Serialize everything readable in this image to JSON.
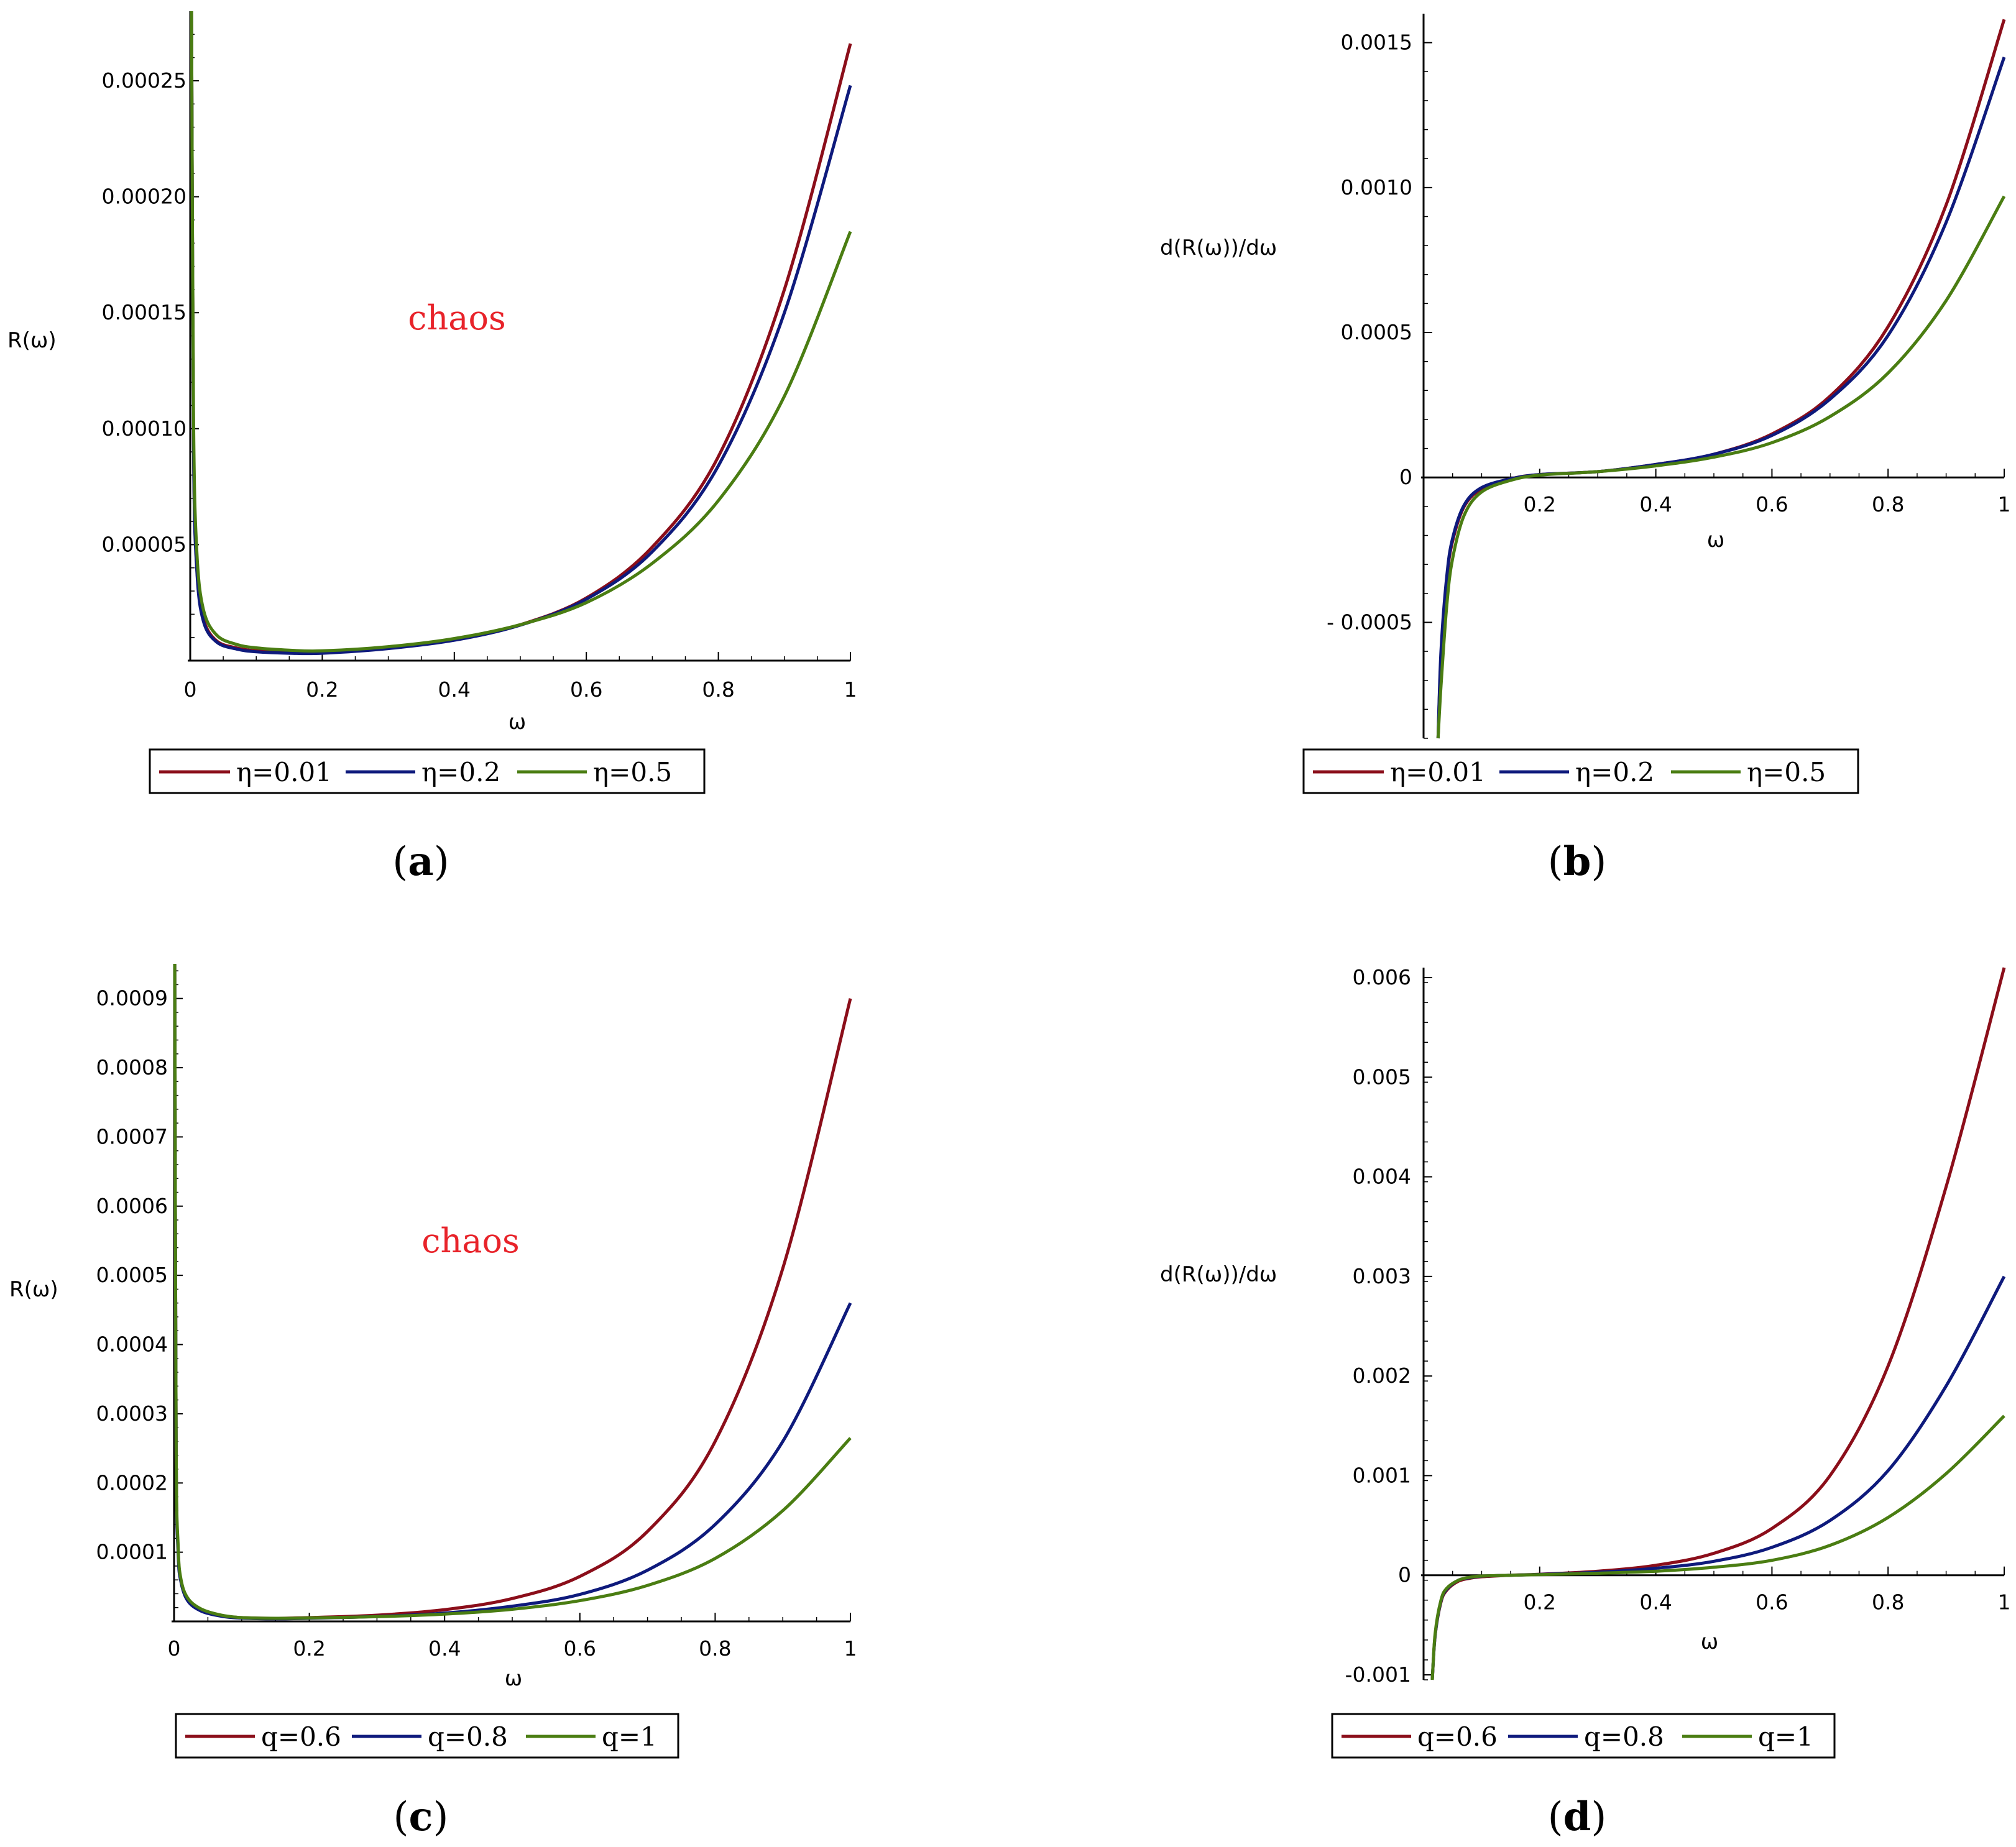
{
  "colors": {
    "red": "#8b0e1a",
    "blue": "#0e1a7c",
    "green": "#4a7d12",
    "annotation": "#e8232a"
  },
  "chart_data": [
    {
      "id": "a",
      "type": "line",
      "caption": "a",
      "xlabel": "ω",
      "ylabel": "R(ω)",
      "xlim": [
        0,
        1
      ],
      "ylim": [
        0,
        0.00028
      ],
      "xticks": [
        "0",
        "0.2",
        "0.4",
        "0.6",
        "0.8",
        "1"
      ],
      "yticks": [
        "0.00005",
        "0.00010",
        "0.00015",
        "0.00020",
        "0.00025"
      ],
      "ytick_values": [
        5e-05,
        0.0001,
        0.00015,
        0.0002,
        0.00025
      ],
      "annotation": "chaos",
      "annotation_at": [
        0.41,
        0.000146
      ],
      "x": [
        0.002,
        0.005,
        0.01,
        0.02,
        0.04,
        0.07,
        0.1,
        0.15,
        0.2,
        0.3,
        0.4,
        0.5,
        0.6,
        0.7,
        0.8,
        0.9,
        1.0
      ],
      "series": [
        {
          "name": "η=0.01",
          "color": "red",
          "values": [
            0.00028,
            9.5e-05,
            4e-05,
            1.8e-05,
            8.5e-06,
            5.5e-06,
            4.2e-06,
            3.5e-06,
            3.5e-06,
            5.5e-06,
            9e-06,
            1.55e-05,
            2.7e-05,
            4.9e-05,
            8.8e-05,
            0.00016,
            0.000266
          ]
        },
        {
          "name": "η=0.2",
          "color": "blue",
          "values": [
            0.00028,
            9.3e-05,
            3.9e-05,
            1.7e-05,
            8e-06,
            5e-06,
            3.8e-06,
            3.2e-06,
            3.2e-06,
            5.2e-06,
            8.8e-06,
            1.53e-05,
            2.65e-05,
            4.7e-05,
            8.4e-05,
            0.00015,
            0.000248
          ]
        },
        {
          "name": "η=0.5",
          "color": "green",
          "values": [
            0.00028,
            0.000105,
            4.7e-05,
            2.2e-05,
            1.1e-05,
            7e-06,
            5.5e-06,
            4.5e-06,
            4.2e-06,
            6e-06,
            9.5e-06,
            1.55e-05,
            2.5e-05,
            4.2e-05,
            6.9e-05,
            0.000114,
            0.000185
          ]
        }
      ]
    },
    {
      "id": "b",
      "type": "line",
      "caption": "b",
      "xlabel": "ω",
      "ylabel": "d(R(ω))/dω",
      "xlim": [
        0,
        1
      ],
      "ylim": [
        -0.0009,
        0.0016
      ],
      "xticks": [
        "0.2",
        "0.4",
        "0.6",
        "0.8",
        "1"
      ],
      "yticks": [
        "- 0.0005",
        "0",
        "0.0005",
        "0.0010",
        "0.0015"
      ],
      "ytick_values": [
        -0.0005,
        0,
        0.0005,
        0.001,
        0.0015
      ],
      "x": [
        0.025,
        0.03,
        0.04,
        0.05,
        0.07,
        0.1,
        0.15,
        0.2,
        0.3,
        0.4,
        0.5,
        0.6,
        0.7,
        0.8,
        0.9,
        1.0
      ],
      "series": [
        {
          "name": "η=0.01",
          "color": "red",
          "values": [
            -0.0009,
            -0.00062,
            -0.00035,
            -0.00022,
            -0.0001,
            -4e-05,
            -5e-06,
            1e-05,
            2e-05,
            4.5e-05,
            8e-05,
            0.00015,
            0.00028,
            0.00052,
            0.00094,
            0.00158
          ]
        },
        {
          "name": "η=0.2",
          "color": "blue",
          "values": [
            -0.0009,
            -0.0006,
            -0.00034,
            -0.00021,
            -9.5e-05,
            -3.5e-05,
            -5e-06,
            1e-05,
            2e-05,
            4.5e-05,
            8e-05,
            0.000145,
            0.00027,
            0.00049,
            0.00088,
            0.00145
          ]
        },
        {
          "name": "η=0.5",
          "color": "green",
          "values": [
            -0.0009,
            -0.00072,
            -0.00044,
            -0.00028,
            -0.00013,
            -5e-05,
            -1e-05,
            8e-06,
            2e-05,
            4e-05,
            7e-05,
            0.00012,
            0.00021,
            0.00036,
            0.00061,
            0.00097
          ]
        }
      ]
    },
    {
      "id": "c",
      "type": "line",
      "caption": "c",
      "xlabel": "ω",
      "ylabel": "R(ω)",
      "xlim": [
        0,
        1
      ],
      "ylim": [
        0,
        0.00095
      ],
      "xticks": [
        "0",
        "0.2",
        "0.4",
        "0.6",
        "0.8",
        "1"
      ],
      "yticks": [
        "0.0001",
        "0.0002",
        "0.0003",
        "0.0004",
        "0.0005",
        "0.0006",
        "0.0007",
        "0.0008",
        "0.0009"
      ],
      "ytick_values": [
        0.0001,
        0.0002,
        0.0003,
        0.0004,
        0.0005,
        0.0006,
        0.0007,
        0.0008,
        0.0009
      ],
      "annotation": "chaos",
      "annotation_at": [
        0.44,
        0.00052
      ],
      "x": [
        0.001,
        0.003,
        0.006,
        0.01,
        0.02,
        0.04,
        0.07,
        0.1,
        0.15,
        0.2,
        0.3,
        0.4,
        0.5,
        0.6,
        0.7,
        0.8,
        0.9,
        1.0
      ],
      "series": [
        {
          "name": "q=0.6",
          "color": "red",
          "values": [
            0.00095,
            0.00025,
            0.000105,
            6e-05,
            3.2e-05,
            1.7e-05,
            8.5e-06,
            5.5e-06,
            4.5e-06,
            5.5e-06,
            9e-06,
            1.7e-05,
            3.3e-05,
            6.5e-05,
            0.00013,
            0.00026,
            0.00051,
            0.0009
          ]
        },
        {
          "name": "q=0.8",
          "color": "blue",
          "values": [
            0.00095,
            0.00025,
            0.0001,
            5.8e-05,
            3e-05,
            1.5e-05,
            7.5e-06,
            4.8e-06,
            3.8e-06,
            4.5e-06,
            7.2e-06,
            1.2e-05,
            2.2e-05,
            3.9e-05,
            7.4e-05,
            0.00014,
            0.00026,
            0.00046
          ]
        },
        {
          "name": "q=1",
          "color": "green",
          "values": [
            0.00095,
            0.00026,
            0.00011,
            6.2e-05,
            3.4e-05,
            1.8e-05,
            9e-06,
            5.5e-06,
            4.5e-06,
            5e-06,
            6.8e-06,
            1.05e-05,
            1.75e-05,
            3e-05,
            5.2e-05,
            9.1e-05,
            0.00016,
            0.000265
          ]
        }
      ]
    },
    {
      "id": "d",
      "type": "line",
      "caption": "d",
      "xlabel": "ω",
      "ylabel": "d(R(ω))/dω",
      "xlim": [
        0,
        1
      ],
      "ylim": [
        -0.00105,
        0.0061
      ],
      "xticks": [
        "0.2",
        "0.4",
        "0.6",
        "0.8",
        "1"
      ],
      "yticks": [
        "-0.001",
        "0",
        "0.001",
        "0.002",
        "0.003",
        "0.004",
        "0.005",
        "0.006"
      ],
      "ytick_values": [
        -0.001,
        0,
        0.001,
        0.002,
        0.003,
        0.004,
        0.005,
        0.006
      ],
      "x": [
        0.015,
        0.02,
        0.03,
        0.04,
        0.06,
        0.08,
        0.1,
        0.15,
        0.2,
        0.3,
        0.4,
        0.5,
        0.6,
        0.7,
        0.8,
        0.9,
        1.0
      ],
      "series": [
        {
          "name": "q=0.6",
          "color": "red",
          "values": [
            -0.00105,
            -0.0006,
            -0.00027,
            -0.00015,
            -6e-05,
            -3e-05,
            -1.5e-05,
            0.0,
            1e-05,
            4e-05,
            0.0001,
            0.00022,
            0.00047,
            0.001,
            0.0021,
            0.0039,
            0.0061
          ]
        },
        {
          "name": "q=0.8",
          "color": "blue",
          "values": [
            -0.00105,
            -0.0006,
            -0.00026,
            -0.00014,
            -5e-05,
            -2.5e-05,
            -1e-05,
            0.0,
            8e-06,
            3e-05,
            7e-05,
            0.00014,
            0.00028,
            0.00055,
            0.00105,
            0.0019,
            0.003
          ]
        },
        {
          "name": "q=1",
          "color": "green",
          "values": [
            -0.00105,
            -0.00058,
            -0.00025,
            -0.00013,
            -5e-05,
            -2e-05,
            -8e-06,
            0.0,
            6e-06,
            2e-05,
            4e-05,
            8e-05,
            0.00015,
            0.0003,
            0.00058,
            0.00102,
            0.0016
          ]
        }
      ]
    }
  ]
}
